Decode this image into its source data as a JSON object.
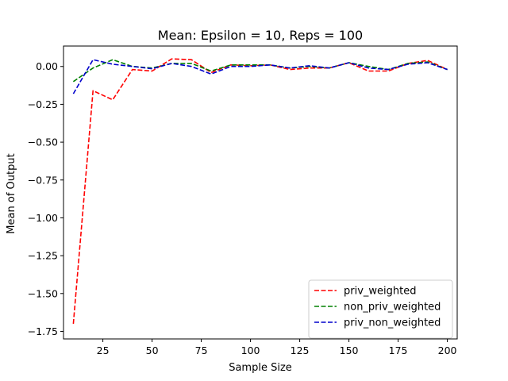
{
  "chart_data": {
    "type": "line",
    "title": "Mean: Epsilon = 10, Reps = 100",
    "xlabel": "Sample Size",
    "ylabel": "Mean of Output",
    "xlim": [
      5,
      205
    ],
    "ylim": [
      -1.8,
      0.135
    ],
    "xticks": [
      25,
      50,
      75,
      100,
      125,
      150,
      175,
      200
    ],
    "xtick_labels": [
      "25",
      "50",
      "75",
      "100",
      "125",
      "150",
      "175",
      "200"
    ],
    "yticks": [
      0.0,
      -0.25,
      -0.5,
      -0.75,
      -1.0,
      -1.25,
      -1.5,
      -1.75
    ],
    "ytick_labels": [
      "0.00",
      "−0.25",
      "−0.50",
      "−0.75",
      "−1.00",
      "−1.25",
      "−1.50",
      "−1.75"
    ],
    "grid": false,
    "legend_position": "lower-right",
    "x": [
      10,
      20,
      30,
      40,
      50,
      60,
      70,
      80,
      90,
      100,
      110,
      120,
      130,
      140,
      150,
      160,
      170,
      180,
      190,
      200
    ],
    "series": [
      {
        "name": "priv_weighted",
        "color": "#ff0000",
        "values": [
          -1.7,
          -0.16,
          -0.22,
          -0.02,
          -0.03,
          0.05,
          0.045,
          -0.04,
          0.01,
          0.005,
          0.01,
          -0.02,
          -0.01,
          -0.01,
          0.025,
          -0.03,
          -0.03,
          0.02,
          0.04,
          -0.02
        ]
      },
      {
        "name": "non_priv_weighted",
        "color": "#008000",
        "values": [
          -0.1,
          -0.01,
          0.045,
          0.0,
          -0.01,
          0.02,
          0.02,
          -0.03,
          0.01,
          0.01,
          0.01,
          -0.01,
          0.0,
          -0.01,
          0.025,
          0.0,
          -0.02,
          0.02,
          0.03,
          -0.02
        ]
      },
      {
        "name": "priv_non_weighted",
        "color": "#0000cc",
        "values": [
          -0.18,
          0.045,
          0.015,
          0.0,
          -0.015,
          0.02,
          0.0,
          -0.05,
          0.0,
          0.0,
          0.01,
          -0.01,
          0.005,
          -0.01,
          0.025,
          -0.01,
          -0.02,
          0.015,
          0.025,
          -0.02
        ]
      }
    ]
  }
}
